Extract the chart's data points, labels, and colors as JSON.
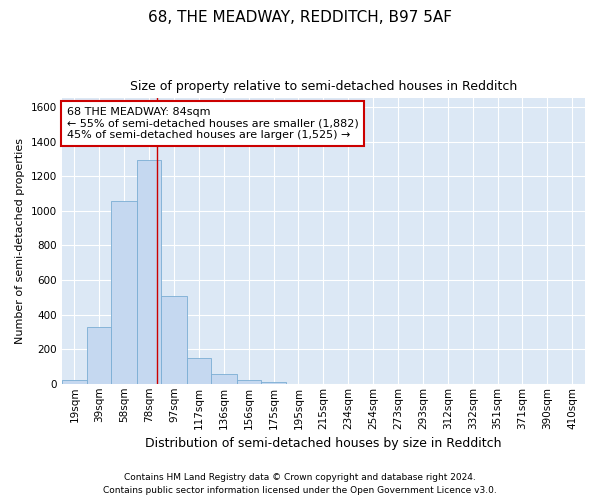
{
  "title1": "68, THE MEADWAY, REDDITCH, B97 5AF",
  "title2": "Size of property relative to semi-detached houses in Redditch",
  "xlabel": "Distribution of semi-detached houses by size in Redditch",
  "ylabel": "Number of semi-detached properties",
  "footnote1": "Contains HM Land Registry data © Crown copyright and database right 2024.",
  "footnote2": "Contains public sector information licensed under the Open Government Licence v3.0.",
  "annotation_line1": "68 THE MEADWAY: 84sqm",
  "annotation_line2": "← 55% of semi-detached houses are smaller (1,882)",
  "annotation_line3": "45% of semi-detached houses are larger (1,525) →",
  "bar_color": "#c5d8f0",
  "bar_edge_color": "#7aadd4",
  "red_line_x": 84,
  "annotation_box_facecolor": "#ffffff",
  "annotation_box_edgecolor": "#cc0000",
  "categories": [
    "19sqm",
    "39sqm",
    "58sqm",
    "78sqm",
    "97sqm",
    "117sqm",
    "136sqm",
    "156sqm",
    "175sqm",
    "195sqm",
    "215sqm",
    "234sqm",
    "254sqm",
    "273sqm",
    "293sqm",
    "312sqm",
    "332sqm",
    "351sqm",
    "371sqm",
    "390sqm",
    "410sqm"
  ],
  "bin_left_edges": [
    9,
    29,
    48,
    68,
    87,
    107,
    126,
    146,
    165,
    185,
    204,
    224,
    243,
    263,
    282,
    302,
    321,
    341,
    360,
    380,
    399
  ],
  "bin_right_edges": [
    29,
    48,
    68,
    87,
    107,
    126,
    146,
    165,
    185,
    204,
    224,
    243,
    263,
    282,
    302,
    321,
    341,
    360,
    380,
    399,
    419
  ],
  "values": [
    20,
    330,
    1055,
    1295,
    510,
    150,
    55,
    22,
    12,
    0,
    0,
    0,
    0,
    0,
    0,
    0,
    0,
    0,
    0,
    0,
    0
  ],
  "ylim": [
    0,
    1650
  ],
  "xlim_left": 9,
  "xlim_right": 419,
  "yticks": [
    0,
    200,
    400,
    600,
    800,
    1000,
    1200,
    1400,
    1600
  ],
  "background_color": "#dce8f5",
  "grid_color": "#ffffff",
  "title1_fontsize": 11,
  "title2_fontsize": 9,
  "ylabel_fontsize": 8,
  "xlabel_fontsize": 9,
  "tick_fontsize": 7.5,
  "footnote_fontsize": 6.5
}
